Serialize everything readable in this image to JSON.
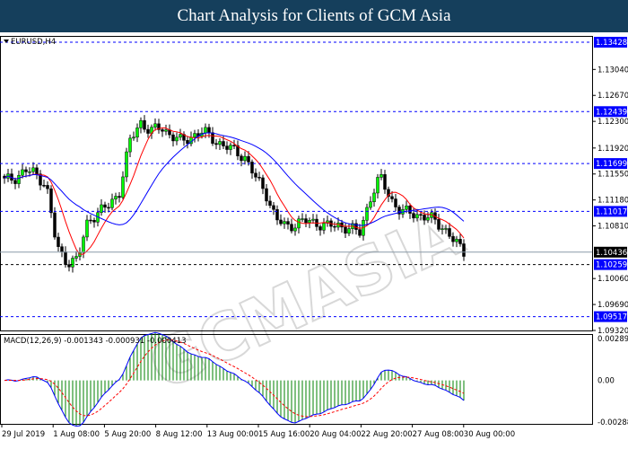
{
  "header": {
    "title": "Chart Analysis for Clients of GCM Asia"
  },
  "watermark": "GCMASIA",
  "chart_data": {
    "type": "candlestick",
    "symbol_label": "EURUSD,H4",
    "price_axis": {
      "range": [
        1.0932,
        1.13428
      ],
      "ticks": [
        "1.13040",
        "1.12670",
        "1.12300",
        "1.11920",
        "1.11550",
        "1.11180",
        "1.10810",
        "1.10060",
        "1.09690",
        "1.09320"
      ]
    },
    "levels": [
      {
        "value": 1.13428,
        "label": "1.13428",
        "color": "#0000ff"
      },
      {
        "value": 1.12439,
        "label": "1.12439",
        "color": "#0000ff"
      },
      {
        "value": 1.11699,
        "label": "1.11699",
        "color": "#0000ff"
      },
      {
        "value": 1.11017,
        "label": "1.11017",
        "color": "#0000ff"
      },
      {
        "value": 1.10259,
        "label": "1.10259",
        "color": "#000000"
      },
      {
        "value": 1.09517,
        "label": "1.09517",
        "color": "#0000ff"
      }
    ],
    "current_price": {
      "value": 1.10436,
      "label": "1.10436"
    },
    "close_path": [
      1.1145,
      1.115,
      1.116,
      1.1155,
      1.114,
      1.105,
      1.103,
      1.1032,
      1.109,
      1.11,
      1.111,
      1.113,
      1.12,
      1.123,
      1.1215,
      1.1222,
      1.121,
      1.12,
      1.121,
      1.1215,
      1.1205,
      1.1195,
      1.1188,
      1.118,
      1.115,
      1.113,
      1.109,
      1.108,
      1.1085,
      1.1088,
      1.1085,
      1.108,
      1.1082,
      1.1078,
      1.107,
      1.112,
      1.115,
      1.112,
      1.11,
      1.11,
      1.1095,
      1.109,
      1.108,
      1.106,
      1.1044
    ],
    "ma_colors": {
      "fast": "#ff0000",
      "slow": "#0000ff"
    },
    "candle_colors": {
      "bull": "#00ff00",
      "bear": "#000000",
      "outline": "#000000"
    },
    "macd": {
      "label": "MACD(12,26,9) -0.001343 -0.000931 -0.000413",
      "range": [
        -0.002882,
        0.002898
      ],
      "ticks": [
        "0.002898",
        "0.00",
        "-0.002882"
      ],
      "macd_color": "#0000ff",
      "signal_color": "#ff0000",
      "hist_color": "#008000"
    },
    "time_labels": [
      "29 Jul 2019",
      "1 Aug 08:00",
      "5 Aug 20:00",
      "8 Aug 12:00",
      "13 Aug 00:00",
      "15 Aug 16:00",
      "20 Aug 04:00",
      "22 Aug 20:00",
      "27 Aug 08:00",
      "30 Aug 00:00"
    ]
  }
}
